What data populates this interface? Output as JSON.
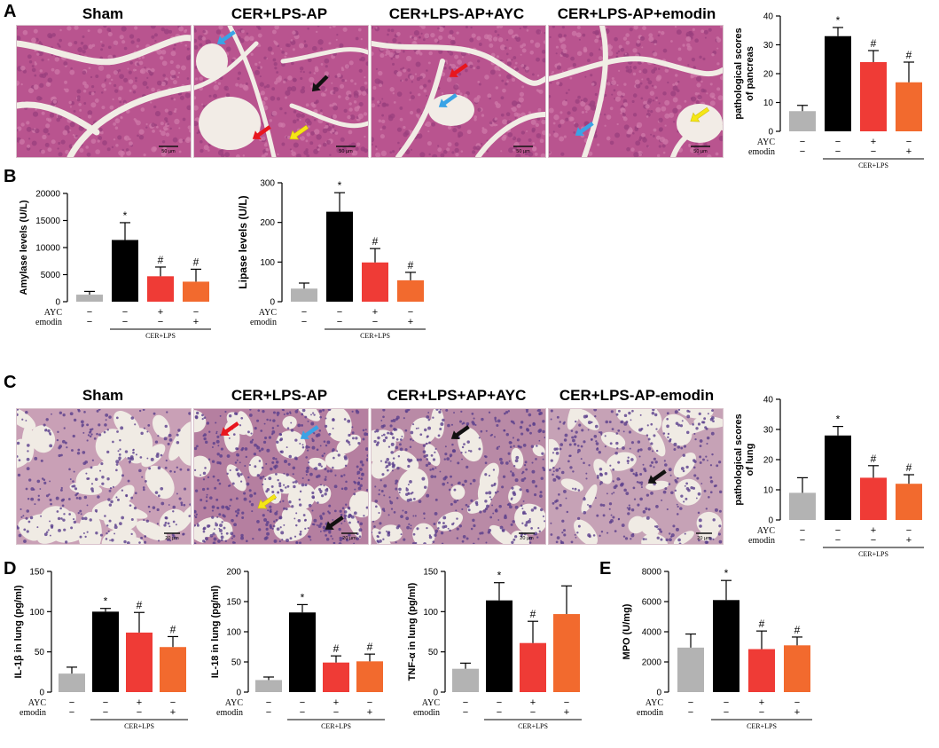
{
  "panels": {
    "A": {
      "letter": "A",
      "micrographs": [
        {
          "title": "Sham",
          "scale_label": "50 µm"
        },
        {
          "title": "CER+LPS-AP",
          "scale_label": "50 µm"
        },
        {
          "title": "CER+LPS-AP+AYC",
          "scale_label": "50 µm"
        },
        {
          "title": "CER+LPS-AP+emodin",
          "scale_label": "50 µm"
        }
      ]
    },
    "B": {
      "letter": "B"
    },
    "C": {
      "letter": "C",
      "micrographs": [
        {
          "title": "Sham",
          "scale_label": "20 µm"
        },
        {
          "title": "CER+LPS-AP",
          "scale_label": "20 µm"
        },
        {
          "title": "CER+LPS+AP+AYC",
          "scale_label": "20 µm"
        },
        {
          "title": "CER+LPS-AP-emodin",
          "scale_label": "20 µm"
        }
      ]
    },
    "D": {
      "letter": "D"
    },
    "E": {
      "letter": "E"
    }
  },
  "treatment_rows": {
    "ayc_label": "AYC",
    "emodin_label": "emodin",
    "group_label": "CER+LPS",
    "ayc_signs": [
      "−",
      "−",
      "+",
      "−"
    ],
    "emodin_signs": [
      "−",
      "−",
      "−",
      "+"
    ]
  },
  "colors": {
    "sham": "#b3b3b3",
    "model": "#000000",
    "ayc": "#ef3b36",
    "emodin": "#f26a2e",
    "arrow_blue": "#3aa3e6",
    "arrow_red": "#e8161e",
    "arrow_black": "#111111",
    "arrow_yellow": "#f5e616"
  },
  "chart_data": [
    {
      "id": "pancreas-score",
      "type": "bar",
      "ylabel": "pathological scores of pancreas",
      "ylim": [
        0,
        40
      ],
      "ticks": [
        0,
        10,
        20,
        30,
        40
      ],
      "tick_labels": [
        "0",
        "10",
        "20",
        "30",
        "40"
      ],
      "values": [
        7,
        33,
        24,
        17
      ],
      "errors": [
        2,
        3,
        4,
        7
      ],
      "marks": [
        "",
        "*",
        "#",
        "#"
      ]
    },
    {
      "id": "amylase",
      "type": "bar",
      "ylabel": "Amylase levels (U/L)",
      "ylim": [
        0,
        20000
      ],
      "ticks": [
        0,
        5000,
        10000,
        15000,
        20000
      ],
      "tick_labels": [
        "0",
        "5000",
        "10000",
        "15000",
        "20000"
      ],
      "values": [
        1300,
        11400,
        4700,
        3700
      ],
      "errors": [
        600,
        3200,
        1700,
        2300
      ],
      "marks": [
        "",
        "*",
        "#",
        "#"
      ]
    },
    {
      "id": "lipase",
      "type": "bar",
      "ylabel": "Lipase  levels (U/L)",
      "ylim": [
        0,
        300
      ],
      "ticks": [
        0,
        100,
        200,
        300
      ],
      "tick_labels": [
        "0",
        "100",
        "200",
        "300"
      ],
      "values": [
        33,
        227,
        99,
        54
      ],
      "errors": [
        14,
        48,
        35,
        20
      ],
      "marks": [
        "",
        "*",
        "#",
        "#"
      ]
    },
    {
      "id": "lung-score",
      "type": "bar",
      "ylabel": "pathological scores of lung",
      "ylim": [
        0,
        40
      ],
      "ticks": [
        0,
        10,
        20,
        30,
        40
      ],
      "tick_labels": [
        "0",
        "10",
        "20",
        "30",
        "40"
      ],
      "values": [
        9,
        28,
        14,
        12
      ],
      "errors": [
        5,
        3,
        4,
        3
      ],
      "marks": [
        "",
        "*",
        "#",
        "#"
      ]
    },
    {
      "id": "il1b",
      "type": "bar",
      "ylabel": "IL-1β in lung (pg/ml)",
      "ylim": [
        0,
        150
      ],
      "ticks": [
        0,
        50,
        100,
        150
      ],
      "tick_labels": [
        "0",
        "50",
        "100",
        "150"
      ],
      "values": [
        23,
        100,
        74,
        56
      ],
      "errors": [
        8,
        4,
        25,
        13
      ],
      "marks": [
        "",
        "*",
        "#",
        "#"
      ]
    },
    {
      "id": "il18",
      "type": "bar",
      "ylabel": "IL-18 in lung (pg/ml)",
      "ylim": [
        0,
        200
      ],
      "ticks": [
        0,
        50,
        100,
        150,
        200
      ],
      "tick_labels": [
        "0",
        "50",
        "100",
        "150",
        "200"
      ],
      "values": [
        20,
        132,
        49,
        51
      ],
      "errors": [
        5,
        13,
        11,
        12
      ],
      "marks": [
        "",
        "*",
        "#",
        "#"
      ]
    },
    {
      "id": "tnfa",
      "type": "bar",
      "ylabel": "TNF-α in lung (pg/ml)",
      "ylim": [
        0,
        150
      ],
      "ticks": [
        0,
        50,
        100,
        150
      ],
      "tick_labels": [
        "0",
        "50",
        "100",
        "150"
      ],
      "values": [
        29,
        114,
        61,
        97
      ],
      "errors": [
        7,
        22,
        27,
        35
      ],
      "marks": [
        "",
        "*",
        "#",
        ""
      ]
    },
    {
      "id": "mpo",
      "type": "bar",
      "ylabel": "MPO (U/mg)",
      "ylim": [
        0,
        8000
      ],
      "ticks": [
        0,
        2000,
        4000,
        6000,
        8000
      ],
      "tick_labels": [
        "0",
        "2000",
        "4000",
        "6000",
        "8000"
      ],
      "values": [
        2950,
        6100,
        2850,
        3100
      ],
      "errors": [
        900,
        1300,
        1200,
        550
      ],
      "marks": [
        "",
        "*",
        "#",
        "#"
      ]
    }
  ]
}
